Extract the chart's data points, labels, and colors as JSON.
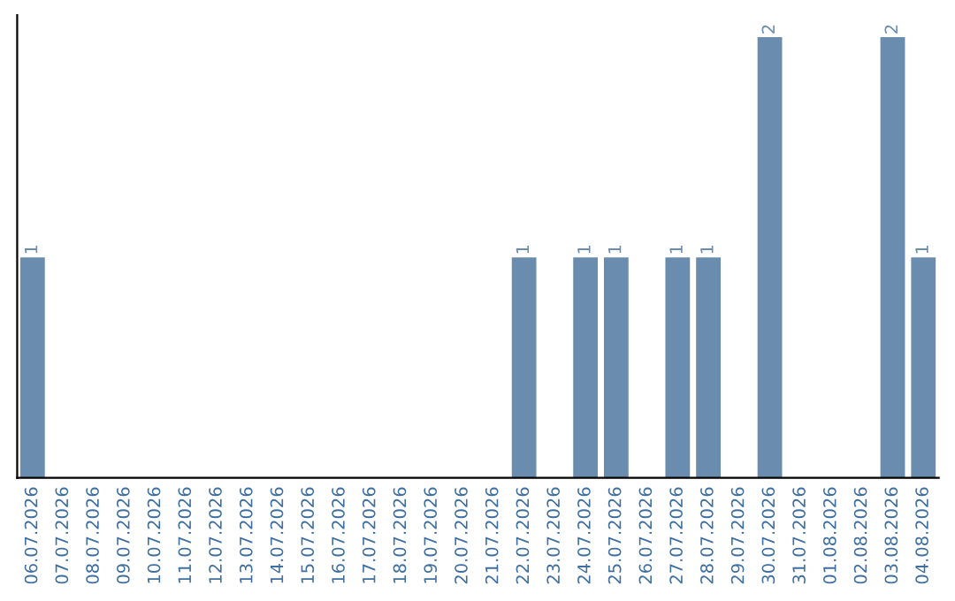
{
  "chart_data": {
    "type": "bar",
    "categories": [
      "06.07.2026",
      "07.07.2026",
      "08.07.2026",
      "09.07.2026",
      "10.07.2026",
      "11.07.2026",
      "12.07.2026",
      "13.07.2026",
      "14.07.2026",
      "15.07.2026",
      "16.07.2026",
      "17.07.2026",
      "18.07.2026",
      "19.07.2026",
      "20.07.2026",
      "21.07.2026",
      "22.07.2026",
      "23.07.2026",
      "24.07.2026",
      "25.07.2026",
      "26.07.2026",
      "27.07.2026",
      "28.07.2026",
      "29.07.2026",
      "30.07.2026",
      "31.07.2026",
      "01.08.2026",
      "02.08.2026",
      "03.08.2026",
      "04.08.2026"
    ],
    "values": [
      1,
      0,
      0,
      0,
      0,
      0,
      0,
      0,
      0,
      0,
      0,
      0,
      0,
      0,
      0,
      0,
      1,
      0,
      1,
      1,
      0,
      1,
      1,
      0,
      2,
      0,
      0,
      0,
      2,
      1
    ],
    "color": "#6a8caf",
    "value_labels": [
      "1",
      null,
      null,
      null,
      null,
      null,
      null,
      null,
      null,
      null,
      null,
      null,
      null,
      null,
      null,
      null,
      "1",
      null,
      "1",
      "1",
      null,
      "1",
      "1",
      null,
      "2",
      null,
      null,
      null,
      "2",
      "1"
    ],
    "tick_labels": "x",
    "grid": false
  }
}
